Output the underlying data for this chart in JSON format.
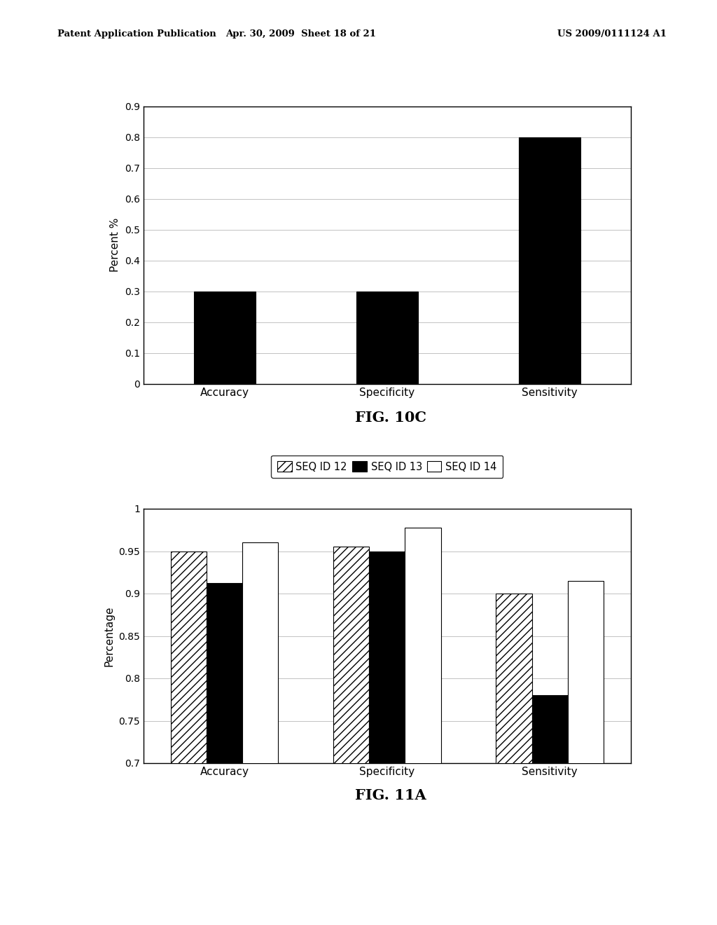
{
  "fig10c": {
    "categories": [
      "Accuracy",
      "Specificity",
      "Sensitivity"
    ],
    "values": [
      0.3,
      0.3,
      0.8
    ],
    "bar_color": "#000000",
    "ylabel": "Percent %",
    "ylim": [
      0,
      0.9
    ],
    "yticks": [
      0,
      0.1,
      0.2,
      0.3,
      0.4,
      0.5,
      0.6,
      0.7,
      0.8,
      0.9
    ],
    "ytick_labels": [
      "0",
      "0.1",
      "0.2",
      "0.3",
      "0.4",
      "0.5",
      "0.6",
      "0.7",
      "0.8",
      "0.9"
    ],
    "title": "FIG. 10C",
    "bar_width": 0.38
  },
  "fig11a": {
    "categories": [
      "Accuracy",
      "Specificity",
      "Sensitivity"
    ],
    "series": [
      {
        "label": "SEQ ID 12",
        "values": [
          0.95,
          0.955,
          0.9
        ],
        "hatch": "///",
        "facecolor": "white",
        "edgecolor": "black"
      },
      {
        "label": "SEQ ID 13",
        "values": [
          0.912,
          0.95,
          0.78
        ],
        "hatch": "",
        "facecolor": "black",
        "edgecolor": "black"
      },
      {
        "label": "SEQ ID 14",
        "values": [
          0.96,
          0.978,
          0.915
        ],
        "hatch": "",
        "facecolor": "white",
        "edgecolor": "black"
      }
    ],
    "ylabel": "Percentage",
    "ylim": [
      0.7,
      1.0
    ],
    "yticks": [
      0.7,
      0.75,
      0.8,
      0.85,
      0.9,
      0.95,
      1.0
    ],
    "ytick_labels": [
      "0.7",
      "0.75",
      "0.8",
      "0.85",
      "0.9",
      "0.95",
      "1"
    ],
    "title": "FIG. 11A",
    "bar_width": 0.22
  },
  "header_left": "Patent Application Publication",
  "header_mid": "Apr. 30, 2009  Sheet 18 of 21",
  "header_right": "US 2009/0111124 A1",
  "background_color": "#ffffff"
}
